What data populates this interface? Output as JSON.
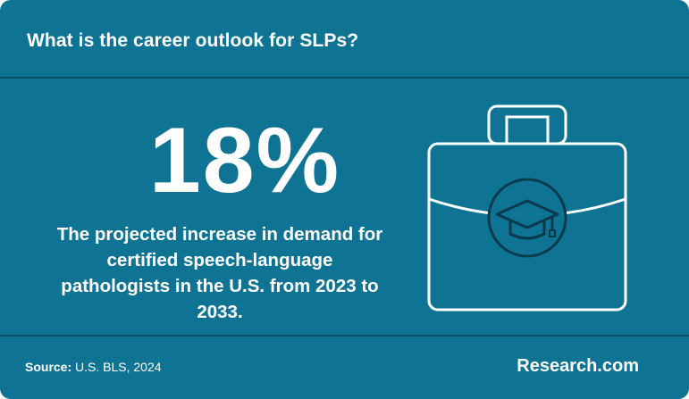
{
  "header": {
    "title": "What is the career outlook for SLPs?"
  },
  "stat": {
    "value": "18%",
    "description": "The projected increase in demand for certified speech-language pathologists in the U.S. from 2023 to 2033."
  },
  "footer": {
    "source_label": "Source:",
    "source_text": "U.S. BLS, 2024",
    "brand": "Research.com"
  },
  "icons": {
    "illustration": "briefcase-graduation-cap-icon"
  },
  "colors": {
    "background": "#0f7494",
    "divider": "#0a4f66",
    "icon_outline": "#ffffff",
    "icon_inner": "#0b3a4d"
  }
}
